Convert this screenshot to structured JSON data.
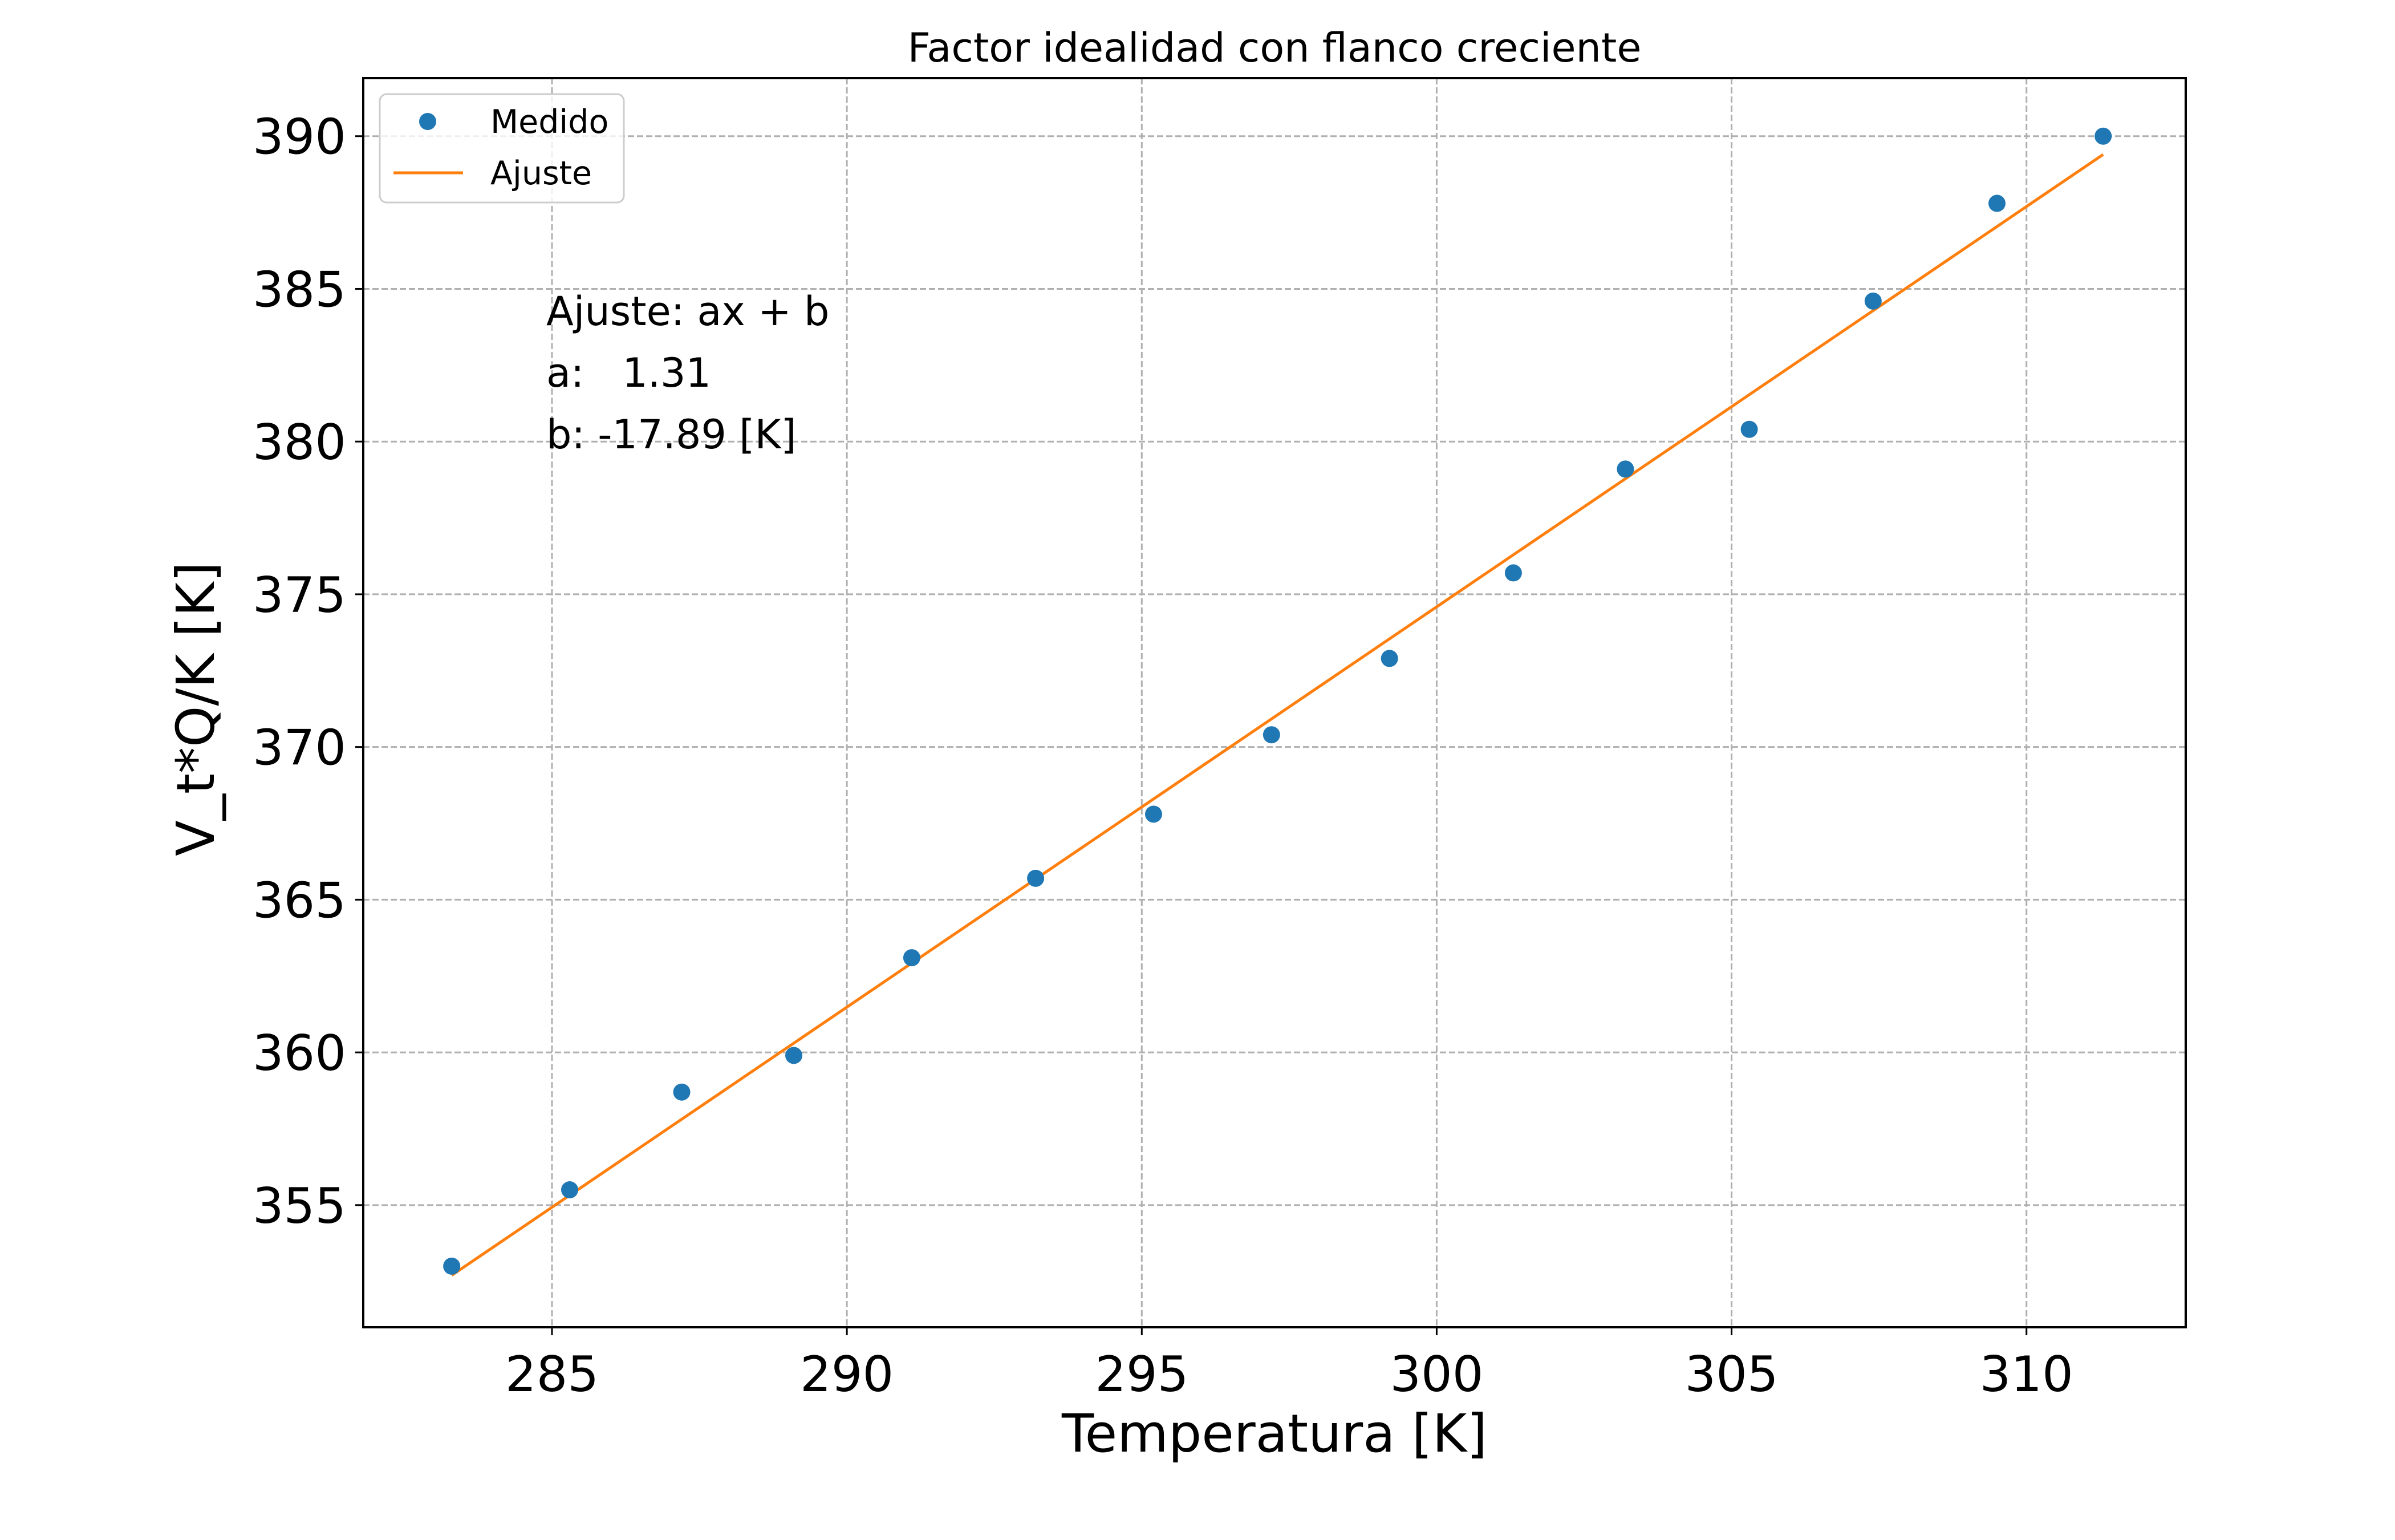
{
  "colors": {
    "medido": "#1f77b4",
    "ajuste": "#ff7f0e",
    "grid": "#b0b0b0",
    "axis": "#000000",
    "background": "#ffffff"
  },
  "chart_data": {
    "type": "scatter",
    "title": "Factor idealidad con flanco creciente",
    "xlabel": "Temperatura [K]",
    "ylabel": "V_t*Q/K [K]",
    "xlim": [
      281.8,
      312.7
    ],
    "ylim": [
      351.0,
      391.9
    ],
    "xticks": [
      285,
      290,
      295,
      300,
      305,
      310
    ],
    "yticks": [
      355,
      360,
      365,
      370,
      375,
      380,
      385,
      390
    ],
    "grid": true,
    "legend_position": "top-left",
    "series": [
      {
        "name": "Medido",
        "kind": "scatter",
        "color": "#1f77b4",
        "x": [
          283.3,
          285.3,
          287.2,
          289.1,
          291.1,
          293.2,
          295.2,
          297.2,
          299.2,
          301.3,
          303.2,
          305.3,
          307.4,
          309.5,
          311.3
        ],
        "y": [
          353.0,
          355.5,
          358.7,
          359.9,
          363.1,
          365.7,
          367.8,
          370.4,
          372.9,
          375.7,
          379.1,
          380.4,
          384.6,
          387.8,
          390.0
        ]
      },
      {
        "name": "Ajuste",
        "kind": "line",
        "color": "#ff7f0e",
        "x": [
          283.3,
          311.3
        ],
        "y": [
          352.7,
          389.4
        ]
      }
    ],
    "annotation": {
      "lines": [
        "Ajuste: ax + b",
        "a:   1.31",
        "b: -17.89 [K]"
      ]
    }
  }
}
